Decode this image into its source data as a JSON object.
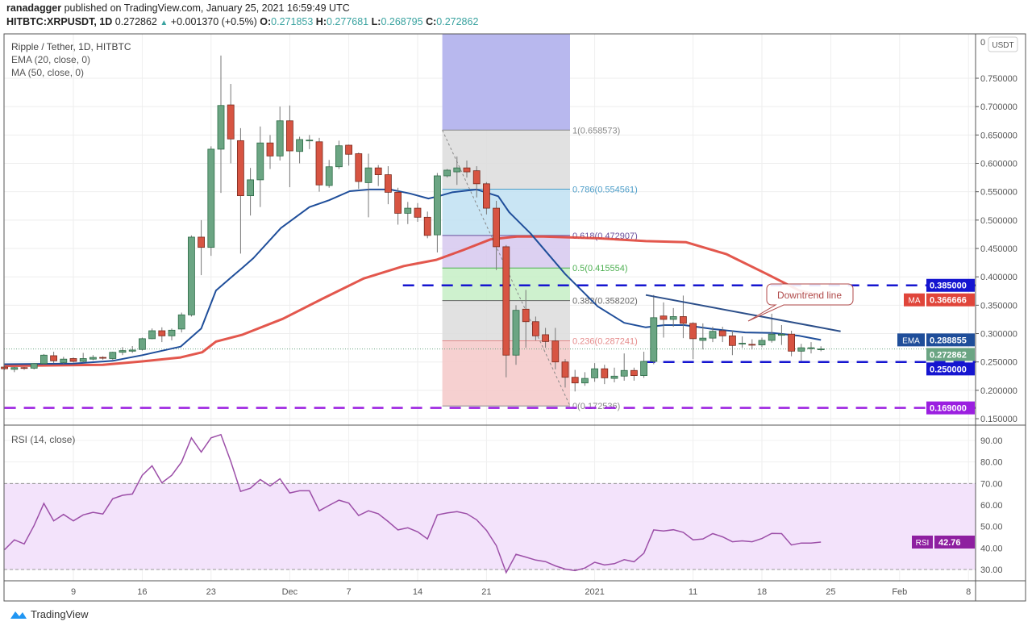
{
  "header": {
    "publisher": "ranadagger",
    "published_text": "published on TradingView.com, January 25, 2021 16:59:49 UTC",
    "symbol": "HITBTC:XRPUSDT, 1D",
    "last": "0.272862",
    "change": "+0.001370 (+0.5%)",
    "o_label": "O:",
    "o": "0.271853",
    "h_label": "H:",
    "h": "0.277681",
    "l_label": "L:",
    "l": "0.268795",
    "c_label": "C:",
    "c": "0.272862"
  },
  "legend": {
    "title": "Ripple / Tether, 1D, HITBTC",
    "ema": "EMA (20, close, 0)",
    "ma": "MA (50, close, 0)",
    "rsi": "RSI (14, close)"
  },
  "currency_button": "USDT",
  "footer": {
    "brand": "TradingView"
  },
  "colors": {
    "up": "#6ba583",
    "down": "#d75442",
    "ema": "#1f4e9a",
    "ma": "#e0453a",
    "rsi": "#9c4fa8",
    "level_blue": "#1515d0",
    "level_purple": "#9b1fe0"
  },
  "chart_data": [
    {
      "type": "candlestick",
      "title": "Ripple / Tether, 1D, HITBTC",
      "first_date": "2020-11-02",
      "ylim": [
        0.14,
        0.81
      ],
      "y_ticks": [
        "0.750000",
        "0.700000",
        "0.650000",
        "0.600000",
        "0.550000",
        "0.500000",
        "0.450000",
        "0.400000",
        "0.350000",
        "0.300000",
        "0.250000",
        "0.200000",
        "0.150000"
      ],
      "y_tick_values": [
        0.75,
        0.7,
        0.65,
        0.6,
        0.55,
        0.5,
        0.45,
        0.4,
        0.35,
        0.3,
        0.25,
        0.2,
        0.15
      ],
      "y_top_partial": "0",
      "x_ticks": [
        {
          "label": "9",
          "day": 7
        },
        {
          "label": "16",
          "day": 14
        },
        {
          "label": "23",
          "day": 21
        },
        {
          "label": "Dec",
          "day": 29
        },
        {
          "label": "7",
          "day": 35
        },
        {
          "label": "14",
          "day": 42
        },
        {
          "label": "21",
          "day": 49
        },
        {
          "label": "2021",
          "day": 60
        },
        {
          "label": "11",
          "day": 70
        },
        {
          "label": "18",
          "day": 77
        },
        {
          "label": "25",
          "day": 84
        },
        {
          "label": "Feb",
          "day": 91
        },
        {
          "label": "8",
          "day": 98
        }
      ],
      "ohlc": [
        [
          0.241,
          0.243,
          0.236,
          0.238
        ],
        [
          0.237,
          0.241,
          0.232,
          0.24
        ],
        [
          0.24,
          0.241,
          0.236,
          0.239
        ],
        [
          0.239,
          0.248,
          0.237,
          0.247
        ],
        [
          0.247,
          0.264,
          0.246,
          0.262
        ],
        [
          0.261,
          0.268,
          0.248,
          0.252
        ],
        [
          0.249,
          0.259,
          0.247,
          0.255
        ],
        [
          0.256,
          0.258,
          0.249,
          0.251
        ],
        [
          0.251,
          0.266,
          0.249,
          0.256
        ],
        [
          0.255,
          0.262,
          0.253,
          0.258
        ],
        [
          0.258,
          0.26,
          0.254,
          0.257
        ],
        [
          0.256,
          0.268,
          0.254,
          0.267
        ],
        [
          0.267,
          0.276,
          0.262,
          0.27
        ],
        [
          0.269,
          0.278,
          0.266,
          0.271
        ],
        [
          0.272,
          0.293,
          0.27,
          0.291
        ],
        [
          0.291,
          0.309,
          0.29,
          0.305
        ],
        [
          0.305,
          0.311,
          0.285,
          0.296
        ],
        [
          0.296,
          0.309,
          0.288,
          0.306
        ],
        [
          0.308,
          0.337,
          0.302,
          0.333
        ],
        [
          0.333,
          0.473,
          0.33,
          0.47
        ],
        [
          0.47,
          0.5,
          0.403,
          0.452
        ],
        [
          0.452,
          0.63,
          0.437,
          0.625
        ],
        [
          0.625,
          0.79,
          0.548,
          0.702
        ],
        [
          0.703,
          0.74,
          0.6,
          0.643
        ],
        [
          0.64,
          0.662,
          0.441,
          0.543
        ],
        [
          0.543,
          0.592,
          0.508,
          0.571
        ],
        [
          0.571,
          0.665,
          0.523,
          0.636
        ],
        [
          0.636,
          0.65,
          0.59,
          0.613
        ],
        [
          0.613,
          0.7,
          0.605,
          0.675
        ],
        [
          0.675,
          0.702,
          0.558,
          0.622
        ],
        [
          0.621,
          0.647,
          0.6,
          0.642
        ],
        [
          0.64,
          0.65,
          0.625,
          0.641
        ],
        [
          0.638,
          0.645,
          0.55,
          0.562
        ],
        [
          0.561,
          0.606,
          0.557,
          0.594
        ],
        [
          0.594,
          0.64,
          0.59,
          0.631
        ],
        [
          0.632,
          0.633,
          0.596,
          0.616
        ],
        [
          0.617,
          0.619,
          0.555,
          0.568
        ],
        [
          0.566,
          0.617,
          0.505,
          0.592
        ],
        [
          0.592,
          0.597,
          0.56,
          0.58
        ],
        [
          0.58,
          0.595,
          0.528,
          0.549
        ],
        [
          0.549,
          0.557,
          0.492,
          0.512
        ],
        [
          0.512,
          0.532,
          0.493,
          0.521
        ],
        [
          0.521,
          0.53,
          0.497,
          0.505
        ],
        [
          0.505,
          0.515,
          0.468,
          0.473
        ],
        [
          0.474,
          0.583,
          0.443,
          0.578
        ],
        [
          0.578,
          0.59,
          0.575,
          0.588
        ],
        [
          0.585,
          0.612,
          0.562,
          0.592
        ],
        [
          0.592,
          0.605,
          0.575,
          0.585
        ],
        [
          0.587,
          0.595,
          0.54,
          0.564
        ],
        [
          0.564,
          0.567,
          0.51,
          0.521
        ],
        [
          0.521,
          0.534,
          0.412,
          0.453
        ],
        [
          0.453,
          0.456,
          0.223,
          0.262
        ],
        [
          0.262,
          0.35,
          0.245,
          0.341
        ],
        [
          0.343,
          0.377,
          0.275,
          0.321
        ],
        [
          0.321,
          0.33,
          0.288,
          0.296
        ],
        [
          0.298,
          0.31,
          0.275,
          0.286
        ],
        [
          0.287,
          0.31,
          0.237,
          0.25
        ],
        [
          0.25,
          0.255,
          0.205,
          0.223
        ],
        [
          0.223,
          0.236,
          0.198,
          0.213
        ],
        [
          0.213,
          0.232,
          0.208,
          0.221
        ],
        [
          0.222,
          0.248,
          0.215,
          0.238
        ],
        [
          0.238,
          0.245,
          0.211,
          0.222
        ],
        [
          0.221,
          0.24,
          0.214,
          0.225
        ],
        [
          0.225,
          0.265,
          0.217,
          0.235
        ],
        [
          0.235,
          0.24,
          0.217,
          0.226
        ],
        [
          0.226,
          0.268,
          0.222,
          0.251
        ],
        [
          0.251,
          0.368,
          0.246,
          0.328
        ],
        [
          0.331,
          0.355,
          0.293,
          0.325
        ],
        [
          0.325,
          0.345,
          0.312,
          0.33
        ],
        [
          0.33,
          0.367,
          0.292,
          0.318
        ],
        [
          0.318,
          0.32,
          0.255,
          0.291
        ],
        [
          0.288,
          0.318,
          0.272,
          0.292
        ],
        [
          0.292,
          0.312,
          0.285,
          0.304
        ],
        [
          0.305,
          0.312,
          0.285,
          0.296
        ],
        [
          0.296,
          0.305,
          0.262,
          0.279
        ],
        [
          0.283,
          0.295,
          0.275,
          0.283
        ],
        [
          0.281,
          0.29,
          0.272,
          0.28
        ],
        [
          0.28,
          0.293,
          0.276,
          0.288
        ],
        [
          0.288,
          0.335,
          0.284,
          0.299
        ],
        [
          0.297,
          0.315,
          0.28,
          0.299
        ],
        [
          0.299,
          0.305,
          0.26,
          0.269
        ],
        [
          0.269,
          0.282,
          0.252,
          0.275
        ],
        [
          0.274,
          0.285,
          0.265,
          0.275
        ],
        [
          0.271853,
          0.277681,
          0.268795,
          0.272862
        ]
      ],
      "ema20": [
        [
          0,
          0.246
        ],
        [
          7,
          0.247
        ],
        [
          11,
          0.252
        ],
        [
          14,
          0.262
        ],
        [
          17.9,
          0.277
        ],
        [
          20,
          0.309
        ],
        [
          21.5,
          0.376
        ],
        [
          23.1,
          0.4
        ],
        [
          24.2,
          0.416
        ],
        [
          25.3,
          0.433
        ],
        [
          28.1,
          0.486
        ],
        [
          31,
          0.523
        ],
        [
          33,
          0.535
        ],
        [
          35.1,
          0.551
        ],
        [
          37.1,
          0.554
        ],
        [
          39.2,
          0.554
        ],
        [
          41.2,
          0.547
        ],
        [
          43.1,
          0.538
        ],
        [
          44.1,
          0.542
        ],
        [
          45.5,
          0.549
        ],
        [
          48,
          0.554
        ],
        [
          50.2,
          0.542
        ],
        [
          51.3,
          0.514
        ],
        [
          53.5,
          0.476
        ],
        [
          57,
          0.405
        ],
        [
          60.3,
          0.348
        ],
        [
          63,
          0.319
        ],
        [
          65.2,
          0.311
        ],
        [
          67.1,
          0.315
        ],
        [
          69.1,
          0.315
        ],
        [
          72,
          0.308
        ],
        [
          75.3,
          0.302
        ],
        [
          78.1,
          0.301
        ],
        [
          80.8,
          0.296
        ],
        [
          83,
          0.288855
        ]
      ],
      "ma50": [
        [
          0,
          0.243
        ],
        [
          10,
          0.245
        ],
        [
          14,
          0.251
        ],
        [
          17.9,
          0.258
        ],
        [
          20.1,
          0.267
        ],
        [
          21.5,
          0.286
        ],
        [
          24.2,
          0.298
        ],
        [
          28.3,
          0.326
        ],
        [
          32.4,
          0.362
        ],
        [
          36.5,
          0.397
        ],
        [
          40.6,
          0.419
        ],
        [
          43.9,
          0.43
        ],
        [
          46.6,
          0.447
        ],
        [
          49.4,
          0.466
        ],
        [
          52.1,
          0.471
        ],
        [
          54.8,
          0.471
        ],
        [
          60.3,
          0.468
        ],
        [
          65.2,
          0.463
        ],
        [
          69.3,
          0.461
        ],
        [
          73.4,
          0.44
        ],
        [
          77.5,
          0.405
        ],
        [
          80.8,
          0.376
        ],
        [
          83,
          0.366666
        ]
      ],
      "price_tags": [
        {
          "label": "",
          "value": "0.385000",
          "price": 0.385,
          "color": "#1515d0"
        },
        {
          "label": "MA",
          "value": "0.366666",
          "price": 0.366666,
          "color": "#e0453a"
        },
        {
          "label": "EMA",
          "value": "0.288855",
          "price": 0.288855,
          "color": "#1f4e9a"
        },
        {
          "label": "",
          "value": "0.272862",
          "price": 0.272862,
          "color": "#6ba583"
        },
        {
          "label": "",
          "value": "0.250000",
          "price": 0.25,
          "color": "#1515d0"
        },
        {
          "label": "",
          "value": "0.169000",
          "price": 0.169,
          "color": "#9b1fe0"
        }
      ],
      "levels": [
        {
          "price": 0.385,
          "from_day": 40.5,
          "color": "#1515d0"
        },
        {
          "price": 0.25,
          "from_day": 65,
          "color": "#1515d0"
        },
        {
          "price": 0.169,
          "from_day": 0,
          "color": "#9b1fe0"
        }
      ],
      "fib": {
        "from_day": 45,
        "to_day": 57,
        "high": 0.658573,
        "low": 0.172536,
        "levels": [
          {
            "ratio": 1,
            "text": "1(0.658573)",
            "price": 0.658573,
            "color": "#888888",
            "fill": "#dcdcdc"
          },
          {
            "ratio": 0.786,
            "text": "0.786(0.554561)",
            "price": 0.554561,
            "color": "#4a9cc8",
            "fill": "#bfe0f2"
          },
          {
            "ratio": 0.618,
            "text": "0.618(0.472907)",
            "price": 0.472907,
            "color": "#6a4f9c",
            "fill": "#d6c8ee"
          },
          {
            "ratio": 0.5,
            "text": "0.5(0.415554)",
            "price": 0.415554,
            "color": "#4caf50",
            "fill": "#c5efc5"
          },
          {
            "ratio": 0.382,
            "text": "0.382(0.358202)",
            "price": 0.358202,
            "color": "#666666",
            "fill": "#dcdcdc"
          },
          {
            "ratio": 0.236,
            "text": "0.236(0.287241)",
            "price": 0.287241,
            "color": "#e58a8a",
            "fill": "#f5c8c8"
          },
          {
            "ratio": 0,
            "text": "0(0.172536)",
            "price": 0.172536,
            "color": "#888888",
            "fill": ""
          }
        ]
      },
      "trendline": {
        "label": "Downtrend line",
        "from": [
          65.2,
          0.368
        ],
        "to": [
          85,
          0.304
        ]
      },
      "annotation": {
        "text": "Downtrend line"
      }
    },
    {
      "type": "line",
      "title": "RSI (14, close)",
      "ylim": [
        24,
        96
      ],
      "y_ticks": [
        "90.00",
        "80.00",
        "70.00",
        "60.00",
        "50.00",
        "40.00",
        "30.00"
      ],
      "y_tick_values": [
        90,
        80,
        70,
        60,
        50,
        40,
        30
      ],
      "band": [
        30,
        70
      ],
      "last_label": "RSI",
      "last_value": "42.76",
      "values": [
        39.2,
        43.8,
        41.9,
        50.4,
        60.7,
        52.6,
        55.6,
        52.6,
        55.4,
        56.6,
        55.8,
        62.9,
        64.5,
        65.1,
        73.8,
        78.2,
        70.3,
        73.8,
        80.0,
        91.2,
        84.6,
        91.2,
        92.7,
        80.3,
        66.3,
        67.8,
        71.8,
        68.8,
        72.2,
        65.6,
        66.6,
        66.6,
        57.3,
        59.8,
        62.2,
        60.9,
        55.1,
        57.3,
        55.9,
        52.3,
        48.4,
        49.4,
        47.5,
        44.2,
        55.4,
        56.3,
        56.9,
        55.9,
        53.1,
        48.2,
        41.1,
        28.6,
        37.1,
        35.8,
        34.4,
        33.7,
        31.7,
        30.2,
        29.5,
        30.7,
        33.4,
        32.1,
        32.7,
        34.6,
        33.6,
        37.6,
        48.4,
        47.9,
        48.5,
        47.3,
        43.8,
        44.2,
        46.7,
        45.2,
        42.9,
        43.3,
        42.9,
        44.4,
        46.8,
        46.7,
        41.4,
        42.3,
        42.3,
        42.76
      ]
    }
  ]
}
